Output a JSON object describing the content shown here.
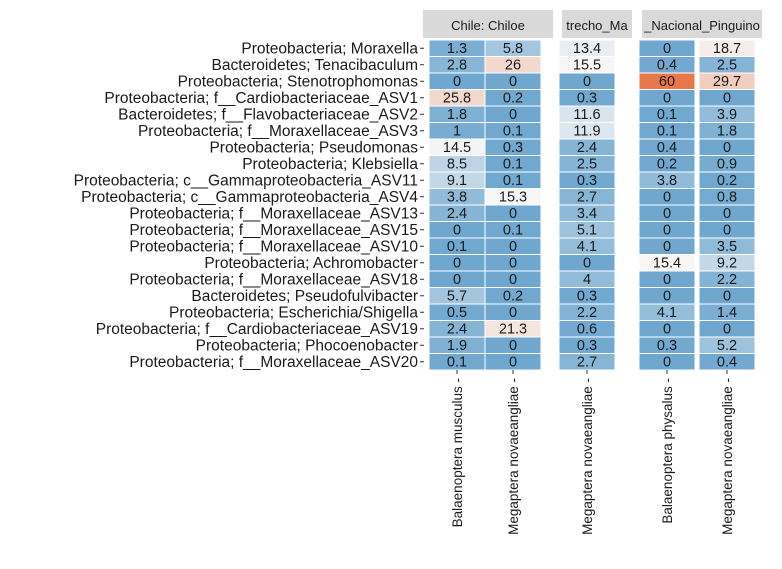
{
  "chart_data": {
    "type": "heatmap",
    "title": "",
    "xlabel": "",
    "ylabel": "",
    "rows": [
      "Proteobacteria; Moraxella",
      "Bacteroidetes; Tenacibaculum",
      "Proteobacteria; Stenotrophomonas",
      "Proteobacteria; f__Cardiobacteriaceae_ASV1",
      "Bacteroidetes; f__Flavobacteriaceae_ASV2",
      "Proteobacteria; f__Moraxellaceae_ASV3",
      "Proteobacteria; Pseudomonas",
      "Proteobacteria; Klebsiella",
      "Proteobacteria; c__Gammaproteobacteria_ASV11",
      "Proteobacteria; c__Gammaproteobacteria_ASV4",
      "Proteobacteria; f__Moraxellaceae_ASV13",
      "Proteobacteria; f__Moraxellaceae_ASV15",
      "Proteobacteria; f__Moraxellaceae_ASV10",
      "Proteobacteria; Achromobacter",
      "Proteobacteria; f__Moraxellaceae_ASV18",
      "Bacteroidetes; Pseudofulvibacter",
      "Proteobacteria; Escherichia/Shigella",
      "Proteobacteria; f__Cardiobacteriaceae_ASV19",
      "Proteobacteria; Phocoenobacter",
      "Proteobacteria; f__Moraxellaceae_ASV20"
    ],
    "panels": [
      {
        "strip": "Chile: Chiloe",
        "columns": [
          {
            "name": "Balaenoptera musculus",
            "values": [
              1.3,
              2.8,
              0,
              25.8,
              1.8,
              1,
              14.5,
              8.5,
              9.1,
              3.8,
              2.4,
              0,
              0.1,
              0,
              0,
              5.7,
              0.5,
              2.4,
              1.9,
              0.1
            ]
          },
          {
            "name": "Megaptera novaeangliae",
            "values": [
              5.8,
              26,
              0,
              0.2,
              0,
              0.1,
              0.3,
              0.1,
              0.1,
              15.3,
              0,
              0.1,
              0,
              0,
              0,
              0.2,
              0,
              21.3,
              0,
              0
            ]
          }
        ]
      },
      {
        "strip": "trecho_Ma",
        "columns": [
          {
            "name": "Megaptera novaeangliae",
            "values": [
              13.4,
              15.5,
              0,
              0.3,
              11.6,
              11.9,
              2.4,
              2.5,
              0.3,
              2.7,
              3.4,
              5.1,
              4.1,
              0,
              4,
              0.3,
              2.2,
              0.6,
              0.3,
              2.7
            ]
          }
        ]
      },
      {
        "strip": "_Nacional_Pinguino",
        "columns": [
          {
            "name": "Balaenoptera physalus",
            "values": [
              0,
              0.4,
              60,
              0,
              0.1,
              0.1,
              0.4,
              0.2,
              3.8,
              0,
              0,
              0,
              0,
              15.4,
              0,
              0,
              4.1,
              0,
              0.3,
              0
            ]
          },
          {
            "name": "Megaptera novaeangliae",
            "values": [
              18.7,
              2.5,
              29.7,
              0,
              3.9,
              1.8,
              0,
              0.9,
              0.2,
              0.8,
              0,
              0,
              3.5,
              9.2,
              2.2,
              0,
              1.4,
              0,
              5.2,
              0.4
            ]
          }
        ]
      }
    ],
    "color_scale": {
      "low": "#6fa7cf",
      "mid": "#f7f7f7",
      "high": "#e8784a",
      "midpoint": 15,
      "max": 60
    },
    "colors": {
      "strip_bg": "#d9d9d9",
      "cell_border": "#ffffff",
      "text": "#1a1a1a"
    }
  }
}
